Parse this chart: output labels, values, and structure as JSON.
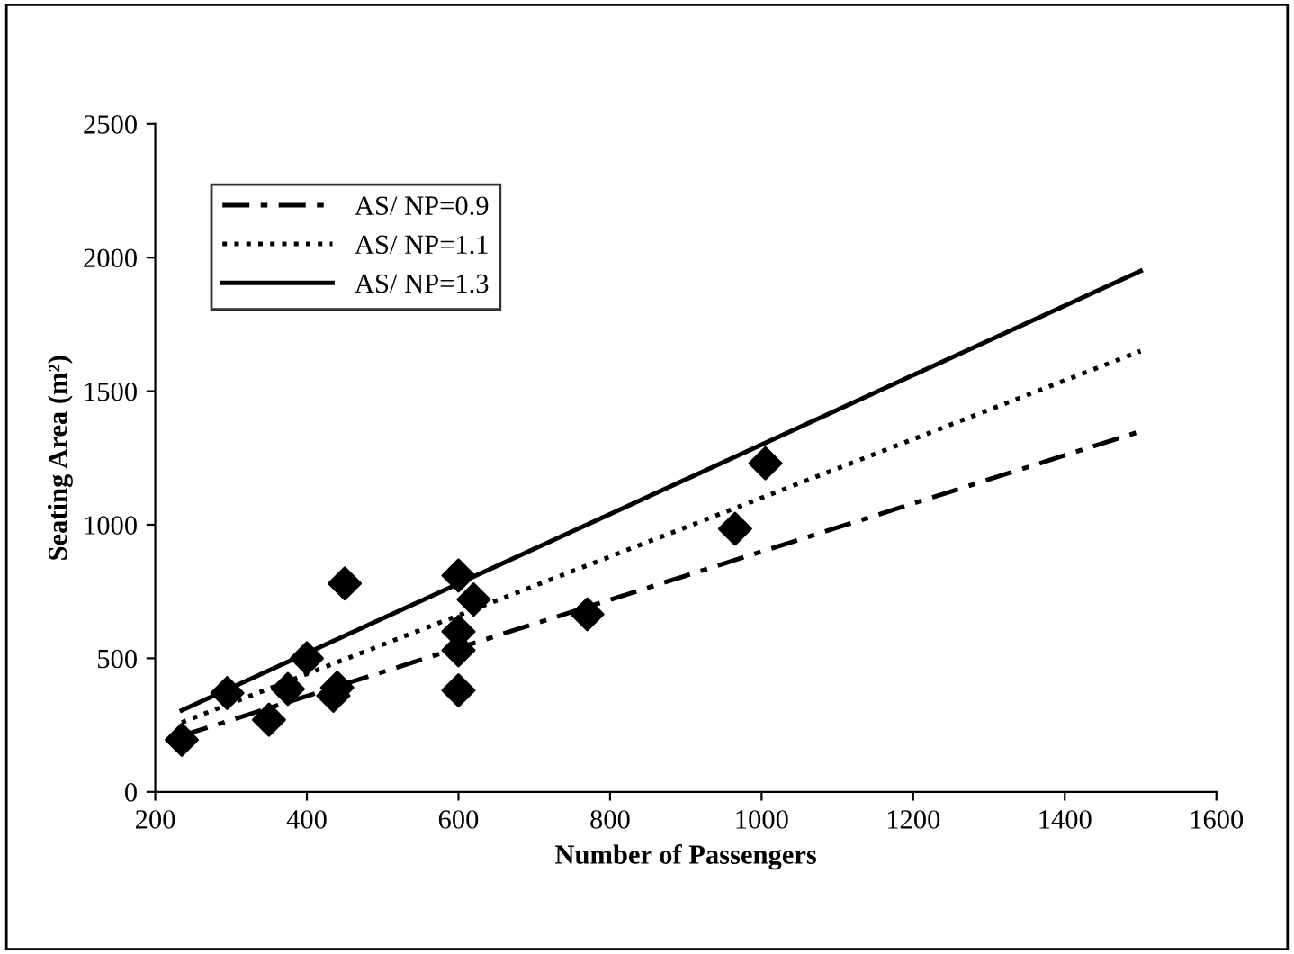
{
  "chart_data": {
    "type": "scatter",
    "xlabel": "Number of Passengers",
    "ylabel": "Seating Area (m²)",
    "xlim": [
      200,
      1600
    ],
    "ylim": [
      0,
      2500
    ],
    "xticks": [
      200,
      400,
      600,
      800,
      1000,
      1200,
      1400,
      1600
    ],
    "yticks": [
      0,
      500,
      1000,
      1500,
      2000,
      2500
    ],
    "grid": false,
    "legend": "top left",
    "series": [
      {
        "type": "line",
        "name": "AS/ NP=0.9",
        "color": "#000000",
        "line_style": "dashdot",
        "marker": "none",
        "x": [
          235,
          1500
        ],
        "values": [
          210,
          1350
        ]
      },
      {
        "type": "line",
        "name": "AS/ NP=1.1",
        "color": "#000000",
        "line_style": "dotted",
        "marker": "none",
        "x": [
          235,
          1500
        ],
        "values": [
          260,
          1650
        ]
      },
      {
        "type": "line",
        "name": "AS/ NP=1.3",
        "color": "#000000",
        "line_style": "solid",
        "marker": "none",
        "x": [
          235,
          1500
        ],
        "values": [
          305,
          1950
        ]
      },
      {
        "color": "#000000",
        "marker": "diamond",
        "x": [
          235,
          295,
          350,
          375,
          400,
          435,
          440,
          450,
          600,
          600,
          600,
          600,
          620,
          770,
          965,
          1005
        ],
        "values": [
          195,
          370,
          270,
          385,
          500,
          360,
          390,
          780,
          810,
          600,
          530,
          380,
          720,
          665,
          985,
          1230
        ]
      }
    ]
  }
}
